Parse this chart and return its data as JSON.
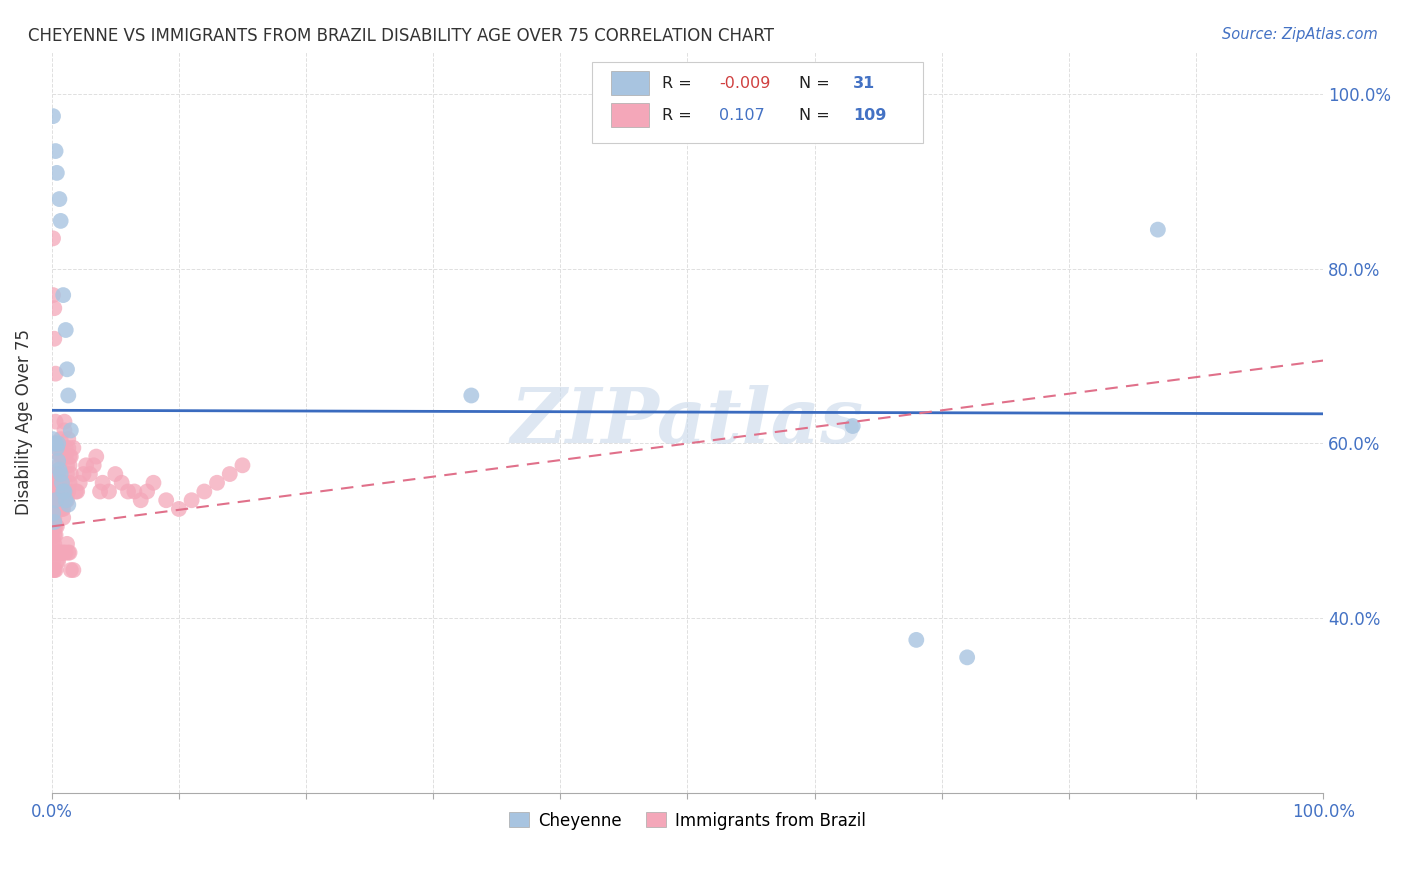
{
  "title": "CHEYENNE VS IMMIGRANTS FROM BRAZIL DISABILITY AGE OVER 75 CORRELATION CHART",
  "source": "Source: ZipAtlas.com",
  "ylabel": "Disability Age Over 75",
  "legend_label_blue": "Cheyenne",
  "legend_label_pink": "Immigrants from Brazil",
  "R_blue": "-0.009",
  "N_blue": "31",
  "R_pink": "0.107",
  "N_pink": "109",
  "blue_color": "#a8c4e0",
  "pink_color": "#f4a7b9",
  "blue_line_color": "#3a6bbf",
  "pink_line_color": "#e0708a",
  "watermark_color": "#c8d8ea",
  "background_color": "#ffffff",
  "grid_color": "#e0e0e0",
  "cheyenne_x": [
    0.001,
    0.003,
    0.004,
    0.006,
    0.007,
    0.009,
    0.011,
    0.012,
    0.013,
    0.015,
    0.001,
    0.002,
    0.003,
    0.004,
    0.005,
    0.006,
    0.007,
    0.008,
    0.009,
    0.01,
    0.011,
    0.013,
    0.001,
    0.002,
    0.003,
    0.005,
    0.33,
    0.63,
    0.68,
    0.72,
    0.87
  ],
  "cheyenne_y": [
    0.975,
    0.935,
    0.91,
    0.88,
    0.855,
    0.77,
    0.73,
    0.685,
    0.655,
    0.615,
    0.605,
    0.6,
    0.6,
    0.595,
    0.58,
    0.57,
    0.565,
    0.555,
    0.545,
    0.545,
    0.535,
    0.53,
    0.52,
    0.51,
    0.535,
    0.6,
    0.655,
    0.62,
    0.375,
    0.355,
    0.845
  ],
  "brazil_x": [
    0.001,
    0.001,
    0.001,
    0.001,
    0.001,
    0.001,
    0.001,
    0.001,
    0.002,
    0.002,
    0.002,
    0.002,
    0.002,
    0.002,
    0.002,
    0.003,
    0.003,
    0.003,
    0.003,
    0.003,
    0.003,
    0.004,
    0.004,
    0.004,
    0.004,
    0.004,
    0.005,
    0.005,
    0.005,
    0.005,
    0.006,
    0.006,
    0.006,
    0.006,
    0.007,
    0.007,
    0.007,
    0.008,
    0.008,
    0.008,
    0.009,
    0.009,
    0.01,
    0.01,
    0.01,
    0.011,
    0.011,
    0.012,
    0.012,
    0.013,
    0.013,
    0.014,
    0.014,
    0.015,
    0.015,
    0.017,
    0.017,
    0.019,
    0.02,
    0.022,
    0.025,
    0.027,
    0.03,
    0.033,
    0.035,
    0.038,
    0.04,
    0.045,
    0.05,
    0.055,
    0.06,
    0.065,
    0.07,
    0.075,
    0.08,
    0.09,
    0.1,
    0.11,
    0.12,
    0.13,
    0.14,
    0.15,
    0.001,
    0.001,
    0.002,
    0.002,
    0.003,
    0.003,
    0.004,
    0.004,
    0.005,
    0.005,
    0.006,
    0.006,
    0.007,
    0.007,
    0.008,
    0.008,
    0.009,
    0.009,
    0.01,
    0.01,
    0.011,
    0.011,
    0.012,
    0.012,
    0.013,
    0.013,
    0.014,
    0.014,
    0.015
  ],
  "brazil_y": [
    0.54,
    0.52,
    0.5,
    0.49,
    0.48,
    0.475,
    0.465,
    0.455,
    0.535,
    0.525,
    0.515,
    0.505,
    0.495,
    0.485,
    0.455,
    0.545,
    0.535,
    0.525,
    0.505,
    0.495,
    0.455,
    0.555,
    0.535,
    0.525,
    0.505,
    0.465,
    0.565,
    0.545,
    0.525,
    0.465,
    0.575,
    0.555,
    0.525,
    0.475,
    0.585,
    0.555,
    0.475,
    0.555,
    0.525,
    0.475,
    0.545,
    0.475,
    0.585,
    0.555,
    0.475,
    0.545,
    0.475,
    0.535,
    0.485,
    0.545,
    0.475,
    0.555,
    0.475,
    0.585,
    0.455,
    0.595,
    0.455,
    0.545,
    0.545,
    0.555,
    0.565,
    0.575,
    0.565,
    0.575,
    0.585,
    0.545,
    0.555,
    0.545,
    0.565,
    0.555,
    0.545,
    0.545,
    0.535,
    0.545,
    0.555,
    0.535,
    0.525,
    0.535,
    0.545,
    0.555,
    0.565,
    0.575,
    0.835,
    0.77,
    0.755,
    0.72,
    0.68,
    0.625,
    0.59,
    0.565,
    0.555,
    0.555,
    0.535,
    0.535,
    0.605,
    0.595,
    0.545,
    0.535,
    0.525,
    0.515,
    0.625,
    0.615,
    0.595,
    0.585,
    0.575,
    0.565,
    0.605,
    0.595,
    0.585,
    0.575,
    0.565
  ],
  "xlim": [
    0.0,
    1.0
  ],
  "ylim": [
    0.2,
    1.05
  ],
  "y_ticks": [
    0.4,
    0.6,
    0.8,
    1.0
  ],
  "x_ticks": [
    0.0,
    0.1,
    0.2,
    0.3,
    0.4,
    0.5,
    0.6,
    0.7,
    0.8,
    0.9,
    1.0
  ],
  "blue_trend_start_y": 0.638,
  "blue_trend_end_y": 0.634,
  "pink_trend_start_y": 0.505,
  "pink_trend_end_y": 0.695
}
